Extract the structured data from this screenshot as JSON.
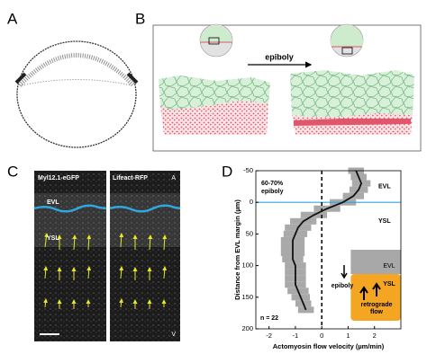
{
  "panels": {
    "a": {
      "label": "A"
    },
    "b": {
      "label": "B",
      "arrow_label": "epiboly"
    },
    "c": {
      "label": "C",
      "left_title": "Myl12.1-eGFP",
      "right_title": "Lifeact-RFP",
      "top_marker": "A",
      "bottom_marker": "V",
      "upper_region": "EVL",
      "lower_region": "YSL"
    }
  },
  "chart_data": {
    "type": "line",
    "panel_label": "D",
    "x_label": "Actomyosin flow velocity (µm/min)",
    "y_label": "Distance from EVL margin (µm)",
    "y": [
      -50,
      -40,
      -30,
      -20,
      -10,
      0,
      10,
      20,
      30,
      40,
      50,
      60,
      70,
      80,
      90,
      100,
      110,
      120,
      130,
      140,
      150,
      160,
      170
    ],
    "values": [
      1.3,
      1.4,
      1.5,
      1.4,
      1.2,
      0.8,
      0.2,
      -0.3,
      -0.7,
      -0.9,
      -1.0,
      -1.1,
      -1.1,
      -1.1,
      -1.1,
      -1.0,
      -1.0,
      -1.0,
      -1.0,
      -0.9,
      -0.8,
      -0.7,
      -0.6
    ],
    "errors": [
      0.3,
      0.3,
      0.35,
      0.35,
      0.4,
      0.5,
      0.5,
      0.5,
      0.5,
      0.5,
      0.45,
      0.45,
      0.45,
      0.45,
      0.4,
      0.4,
      0.4,
      0.4,
      0.4,
      0.4,
      0.35,
      0.3,
      0.3
    ],
    "color": "#111111",
    "band_color": "#a9a9a9",
    "xlim": [
      -2.5,
      3
    ],
    "xticks": [
      -2,
      -1,
      0,
      1,
      2
    ],
    "ylim": [
      -50,
      200
    ],
    "yticks": [
      -50,
      0,
      50,
      100,
      150,
      200
    ],
    "y_inverted": true,
    "annotations": {
      "stage": [
        "60-70%",
        "epiboly"
      ],
      "upper_region": "EVL",
      "lower_region": "YSL",
      "n": "n = 22"
    },
    "inset": {
      "upper_region": "EVL",
      "lower_region": "YSL",
      "arrow_label": "epiboly",
      "flow_label": [
        "retrograde",
        "flow"
      ]
    }
  }
}
